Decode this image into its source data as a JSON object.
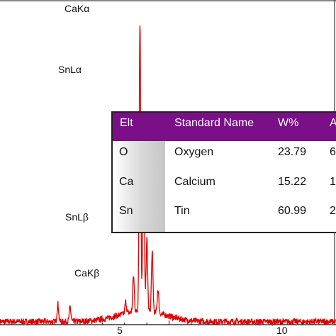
{
  "chart_data": {
    "type": "line",
    "xlabel": "",
    "ylabel": "",
    "xlim": [
      -2.6,
      12.5
    ],
    "ylim": [
      0,
      1.08
    ],
    "x_ticks": [
      5,
      10
    ],
    "series_color": "#e00000",
    "background_noise_level": 0.02,
    "peaks": [
      {
        "x": 0.0,
        "height": 0.06
      },
      {
        "x": 0.55,
        "height": 0.05
      },
      {
        "x": 3.05,
        "height": 0.04
      },
      {
        "x": 3.4,
        "height": 0.12
      },
      {
        "x": 3.69,
        "height": 0.96
      },
      {
        "x": 3.85,
        "height": 0.62
      },
      {
        "x": 4.0,
        "height": 0.24
      },
      {
        "x": 4.24,
        "height": 0.2
      },
      {
        "x": 4.5,
        "height": 0.08
      }
    ],
    "annotations": [
      {
        "label": "CaKα",
        "x": 3.69
      },
      {
        "label": "SnLα",
        "x": 3.44
      },
      {
        "label": "SnLβ",
        "x": 3.66
      },
      {
        "label": "CaKβ",
        "x": 4.01
      }
    ]
  },
  "table": {
    "headers": [
      "Elt",
      "Standard Name",
      "W%",
      "A"
    ],
    "rows": [
      {
        "elt": "O",
        "name": "Oxygen",
        "w": "23.79",
        "a": "6"
      },
      {
        "elt": "Ca",
        "name": "Calcium",
        "w": "15.22",
        "a": "1"
      },
      {
        "elt": "Sn",
        "name": "Tin",
        "w": "60.99",
        "a": "2"
      }
    ]
  }
}
